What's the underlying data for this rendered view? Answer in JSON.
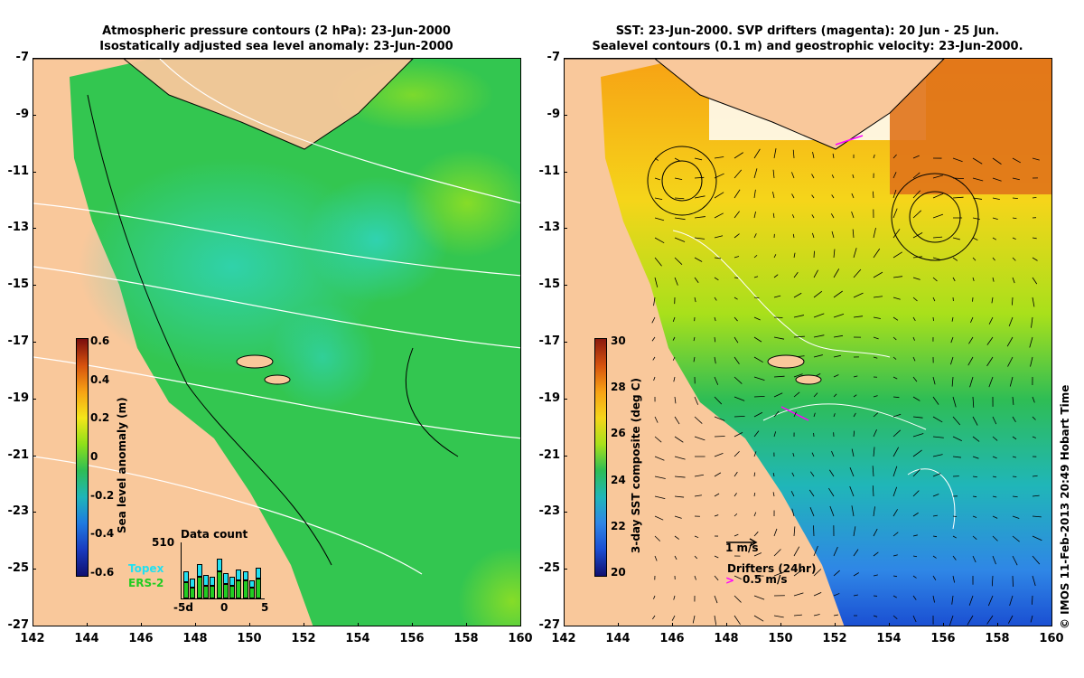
{
  "left_panel": {
    "title_line1": "Atmospheric pressure contours (2 hPa): 23-Jun-2000",
    "title_line2": "Isostatically adjusted sea level anomaly: 23-Jun-2000",
    "colorbar_label": "Sea level anomaly (m)",
    "colorbar_ticks": [
      "0.6",
      "0.4",
      "0.2",
      "0",
      "-0.2",
      "-0.4",
      "-0.6"
    ],
    "data_count_title": "Data count",
    "data_count_max": "510",
    "data_count_xticks": [
      "-5d",
      "0",
      "5"
    ],
    "legend_topex": "Topex",
    "legend_ers2": "ERS-2",
    "colors": {
      "topex": "#22e0f0",
      "ers2": "#22cc22"
    }
  },
  "right_panel": {
    "title_line1": "SST: 23-Jun-2000. SVP drifters (magenta): 20 Jun - 25 Jun.",
    "title_line2": "Sealevel contours (0.1 m) and geostrophic velocity: 23-Jun-2000.",
    "colorbar_label": "3-day SST composite (deg C)",
    "colorbar_ticks": [
      "30",
      "28",
      "26",
      "24",
      "22",
      "20"
    ],
    "velocity_scale_label": "1 m/s",
    "drifters_label": "Drifters (24hr)",
    "drifter_speed_label": "0.5 m/s",
    "drifter_color": "#ff00ff"
  },
  "axes": {
    "y_ticks": [
      "-7",
      "-9",
      "-11",
      "-13",
      "-15",
      "-17",
      "-19",
      "-21",
      "-23",
      "-25",
      "-27"
    ],
    "x_ticks": [
      "142",
      "144",
      "146",
      "148",
      "150",
      "152",
      "154",
      "156",
      "158",
      "160"
    ]
  },
  "credit": "© IMOS 11-Feb-2013 20:49 Hobart Time"
}
